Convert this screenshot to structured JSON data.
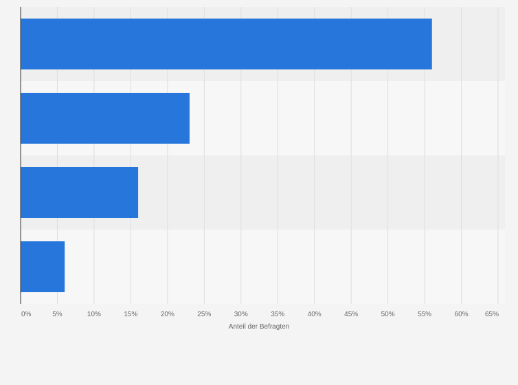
{
  "chart_data": {
    "type": "bar",
    "orientation": "horizontal",
    "categories": [
      "",
      "",
      "",
      ""
    ],
    "values": [
      56,
      23,
      16,
      6
    ],
    "title": "",
    "xlabel": "Anteil der Befragten",
    "ylabel": "",
    "xlim": [
      0,
      65
    ],
    "xticks": [
      0,
      5,
      10,
      15,
      20,
      25,
      30,
      35,
      40,
      45,
      50,
      55,
      60,
      65
    ],
    "tick_labels": [
      "0%",
      "5%",
      "10%",
      "15%",
      "20%",
      "25%",
      "30%",
      "35%",
      "40%",
      "45%",
      "50%",
      "55%",
      "60%",
      "65%"
    ],
    "grid": true,
    "legend": "none",
    "colors": {
      "bar": "#2776dc",
      "band_dark": "#efefef",
      "band_light": "#f7f7f7",
      "grid": "#dedede",
      "axis": "#333333",
      "text": "#666666"
    }
  }
}
